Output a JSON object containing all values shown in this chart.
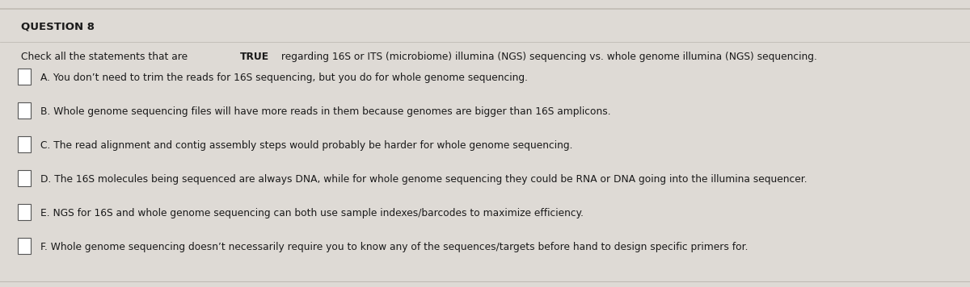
{
  "title": "QUESTION 8",
  "instruction_normal": "Check all the statements that are ",
  "instruction_bold": "TRUE",
  "instruction_rest": " regarding 16S or ITS (microbiome) illumina (NGS) sequencing vs. whole genome illumina (NGS) sequencing.",
  "options": [
    "A. You don’t need to trim the reads for 16S sequencing, but you do for whole genome sequencing.",
    "B. Whole genome sequencing files will have more reads in them because genomes are bigger than 16S amplicons.",
    "C. The read alignment and contig assembly steps would probably be harder for whole genome sequencing.",
    "D. The 16S molecules being sequenced are always DNA, while for whole genome sequencing they could be RNA or DNA going into the illumina sequencer.",
    "E. NGS for 16S and whole genome sequencing can both use sample indexes/barcodes to maximize efficiency.",
    "F. Whole genome sequencing doesn’t necessarily require you to know any of the sequences/targets before hand to design specific primers for."
  ],
  "bg_color": "#dedad5",
  "card_color": "#edeae6",
  "title_fontsize": 9.5,
  "body_fontsize": 8.8,
  "text_color": "#1a1a1a",
  "top_border_color": "#c0bbb4",
  "line_color": "#c0bbb4"
}
